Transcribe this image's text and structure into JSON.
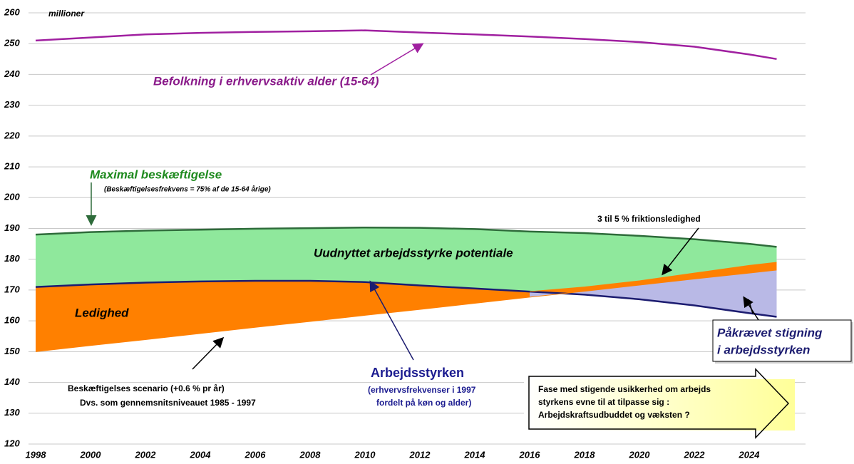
{
  "chart_data": {
    "type": "area",
    "unit_label": "millioner",
    "x": [
      1998,
      2000,
      2002,
      2004,
      2006,
      2008,
      2010,
      2012,
      2014,
      2016,
      2018,
      2020,
      2022,
      2024,
      2025
    ],
    "xlim": [
      1998,
      2025
    ],
    "xticks": [
      1998,
      2000,
      2002,
      2004,
      2006,
      2008,
      2010,
      2012,
      2014,
      2016,
      2018,
      2020,
      2022,
      2024
    ],
    "ylim": [
      120,
      260
    ],
    "yticks": [
      120,
      130,
      140,
      150,
      160,
      170,
      180,
      190,
      200,
      210,
      220,
      230,
      240,
      250,
      260
    ],
    "grid": true,
    "series": [
      {
        "name": "Befolkning i erhvervsaktiv alder (15-64)",
        "color": "#a020a0",
        "values": [
          251,
          252,
          253,
          253.5,
          253.8,
          254,
          254.3,
          253.6,
          253,
          252.3,
          251.5,
          250.5,
          249,
          246.5,
          245
        ]
      },
      {
        "name": "Maximal beskæftigelse",
        "color": "#2e6b3a",
        "values": [
          188,
          188.8,
          189.3,
          189.6,
          189.9,
          190.1,
          190.3,
          190.2,
          189.8,
          189,
          188.5,
          187.6,
          186.5,
          185,
          184
        ]
      },
      {
        "name": "Arbejdsstyrken",
        "color": "#1c1c70",
        "values": [
          171,
          171.8,
          172.4,
          172.8,
          173,
          173,
          172.6,
          171.5,
          170.5,
          169.5,
          168.5,
          167,
          165,
          162.5,
          161.3
        ]
      },
      {
        "name": "Beskæftigelses scenario (+0.6 % pr år)",
        "color": "#ff8000",
        "values": [
          150,
          152,
          153.9,
          155.9,
          157.9,
          159.8,
          161.8,
          163.7,
          165.7,
          167.7,
          169.6,
          171.6,
          173.6,
          175.5,
          176.5
        ]
      },
      {
        "name": "3 til 5 % friktionsledighed",
        "color": "#ff8000",
        "values": [
          null,
          null,
          null,
          null,
          null,
          null,
          null,
          null,
          null,
          169.5,
          171,
          173,
          175.5,
          178,
          179
        ]
      }
    ],
    "area_colors": [
      "#8fe89c",
      "#ff8000",
      "#b9b9e6"
    ],
    "annotations": {
      "max_note": "(Beskæftigelsesfrekvens = 75% af de 15-64 årige)",
      "potential": "Uudnyttet arbejdsstyrke potentiale",
      "unemployment": "Ledighed",
      "scenario_note": "Dvs. som gennemsnitsniveauet 1985 - 1997",
      "labour_note": [
        "(erhvervsfrekvenser i 1997",
        "fordelt på køn og alder)"
      ],
      "required": [
        "Påkrævet stigning",
        "i arbejdsstyrken"
      ],
      "box": [
        "Fase med stigende usikkerhed om arbejds",
        "styrkens evne til at tilpasse sig :",
        "Arbejdskraftsudbuddet og væksten ?"
      ]
    }
  }
}
